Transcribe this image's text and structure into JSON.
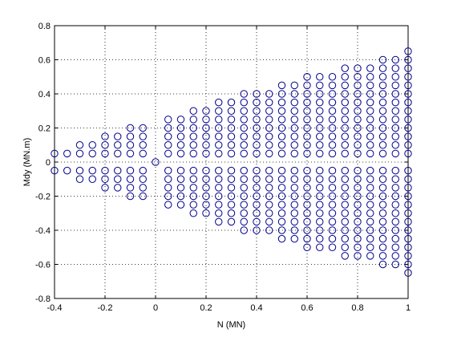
{
  "chart_data": {
    "type": "scatter",
    "title": "",
    "xlabel": "N (MN)",
    "ylabel": "Mdy (MN.m)",
    "xlim": [
      -0.4,
      1.0
    ],
    "ylim": [
      -0.8,
      0.8
    ],
    "xticks": [
      -0.4,
      -0.2,
      0,
      0.2,
      0.4,
      0.6,
      0.8,
      1
    ],
    "yticks": [
      -0.8,
      -0.6,
      -0.4,
      -0.2,
      0,
      0.2,
      0.4,
      0.6,
      0.8
    ],
    "xtick_labels": [
      "-0.4",
      "-0.2",
      "0",
      "0.2",
      "0.4",
      "0.6",
      "0.8",
      "1"
    ],
    "ytick_labels": [
      "-0.8",
      "-0.6",
      "-0.4",
      "-0.2",
      "0",
      "0.2",
      "0.4",
      "0.6",
      "0.8"
    ],
    "grid": true,
    "legend": false,
    "marker": "circle-open",
    "marker_color": "#00008b",
    "y_step": 0.05,
    "columns": [
      {
        "x": -0.4,
        "ymax": 0.05
      },
      {
        "x": -0.35,
        "ymax": 0.05
      },
      {
        "x": -0.3,
        "ymax": 0.1
      },
      {
        "x": -0.25,
        "ymax": 0.1
      },
      {
        "x": -0.2,
        "ymax": 0.15
      },
      {
        "x": -0.15,
        "ymax": 0.15
      },
      {
        "x": -0.1,
        "ymax": 0.2
      },
      {
        "x": -0.05,
        "ymax": 0.2
      },
      {
        "x": 0.0,
        "ymax": 0.0
      },
      {
        "x": 0.05,
        "ymax": 0.25
      },
      {
        "x": 0.1,
        "ymax": 0.25
      },
      {
        "x": 0.15,
        "ymax": 0.3
      },
      {
        "x": 0.2,
        "ymax": 0.3
      },
      {
        "x": 0.25,
        "ymax": 0.35
      },
      {
        "x": 0.3,
        "ymax": 0.35
      },
      {
        "x": 0.35,
        "ymax": 0.4
      },
      {
        "x": 0.4,
        "ymax": 0.4
      },
      {
        "x": 0.45,
        "ymax": 0.4
      },
      {
        "x": 0.5,
        "ymax": 0.45
      },
      {
        "x": 0.55,
        "ymax": 0.45
      },
      {
        "x": 0.6,
        "ymax": 0.5
      },
      {
        "x": 0.65,
        "ymax": 0.5
      },
      {
        "x": 0.7,
        "ymax": 0.5
      },
      {
        "x": 0.75,
        "ymax": 0.55
      },
      {
        "x": 0.8,
        "ymax": 0.55
      },
      {
        "x": 0.85,
        "ymax": 0.55
      },
      {
        "x": 0.9,
        "ymax": 0.6
      },
      {
        "x": 0.95,
        "ymax": 0.6
      },
      {
        "x": 1.0,
        "ymax": 0.65
      }
    ]
  }
}
